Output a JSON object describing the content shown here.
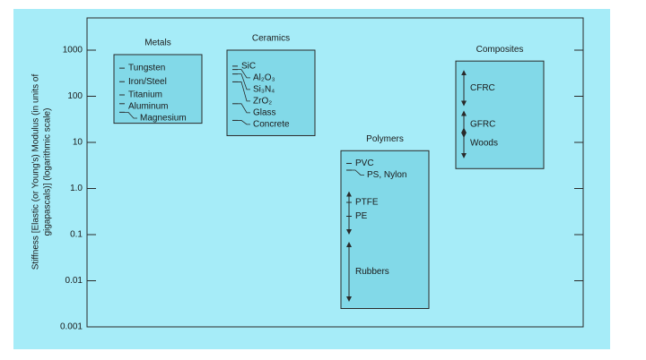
{
  "chart_data": {
    "type": "range-boxes",
    "y_label": [
      "Stiffness [Elastic (or Young's) Modulus (in units of",
      "gigapascals)] (logarithmic scale)"
    ],
    "log_scale": true,
    "ylim": [
      0.001,
      5000
    ],
    "yticks": [
      0.001,
      0.01,
      0.1,
      {
        "value": 1,
        "label": "1.0"
      },
      10,
      100,
      1000
    ],
    "groups": [
      {
        "name": "Metals",
        "range": [
          26,
          800
        ],
        "items": [
          {
            "label": "Tungsten",
            "value": 407
          },
          {
            "label": "Iron/Steel",
            "value": 207
          },
          {
            "label": "Titanium",
            "value": 107
          },
          {
            "label": "Aluminum",
            "value": 69
          },
          {
            "label": "Magnesium",
            "value": 45
          }
        ]
      },
      {
        "name": "Ceramics",
        "range": [
          14,
          1000
        ],
        "items": [
          {
            "label": "SiC",
            "value": 450
          },
          {
            "label": "Al₂O₃",
            "value": 380
          },
          {
            "label": "Si₃N₄",
            "value": 304
          },
          {
            "label": "ZrO₂",
            "value": 205
          },
          {
            "label": "Glass",
            "value": 69
          },
          {
            "label": "Concrete",
            "value": 30
          }
        ]
      },
      {
        "name": "Polymers",
        "range": [
          0.0025,
          6.6
        ],
        "items": [
          {
            "label": "PVC",
            "value": 3.5
          },
          {
            "label": "PS, Nylon",
            "value": 2.5
          },
          {
            "label": "PTFE",
            "value": 0.5
          },
          {
            "label": "PE",
            "value": 0.25
          },
          {
            "label": "Rubbers",
            "range": [
              0.0035,
              0.07
            ]
          }
        ],
        "arrows": [
          [
            0.1,
            0.87
          ]
        ]
      },
      {
        "name": "Composites",
        "range": [
          2.7,
          580
        ],
        "items": [
          {
            "label": "CFRC",
            "range": [
              61,
              370
            ]
          },
          {
            "label": "GFRC",
            "range": [
              12.5,
              49
            ]
          },
          {
            "label": "Woods",
            "range": [
              4.5,
              21
            ]
          }
        ]
      }
    ],
    "colors": {
      "background": "#a6ecf8",
      "box": "#82d9e8",
      "edge": "#2a2a2a"
    }
  }
}
